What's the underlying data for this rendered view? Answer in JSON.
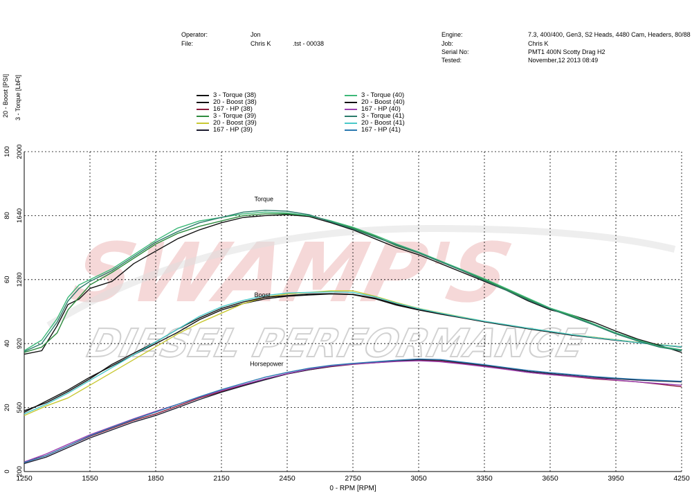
{
  "header": {
    "operator_label": "Operator:",
    "operator_value": "Jon",
    "file_label": "File:",
    "file_value": "Chris K",
    "file_extra": ".tst - 00038",
    "engine_label": "Engine:",
    "engine_value": "7.3, 400/400, Gen3, S2 Heads, 4480 Cam, Headers, 80/88",
    "job_label": "Job:",
    "job_value": "Chris K",
    "serial_label": "Serial No:",
    "serial_value": "PMT1 400N Scotty Drag H2",
    "tested_label": "Tested:",
    "tested_value": "November,12 2013 08:49"
  },
  "watermark": {
    "brand_top": "SWAMP'S",
    "brand_bottom": "DIESEL PERFORMANCE"
  },
  "colors": {
    "t38": "#111111",
    "b38": "#111111",
    "h38": "#8b1a3a",
    "t39": "#2e8b3e",
    "b39": "#c8c832",
    "h39": "#1a1a2e",
    "t40": "#3cb878",
    "b40": "#111111",
    "h40": "#9a3fb0",
    "t41": "#2a7a6a",
    "b41": "#48c8c8",
    "h41": "#2a78b0"
  },
  "chart_data": {
    "type": "line",
    "xlabel": "0 - RPM [RPM]",
    "ylabel_left": "20 - Boost [PSI]",
    "ylabel_right": "3 - Torque  [LbFt]",
    "xlim": [
      1250,
      4250
    ],
    "xticks": [
      1250,
      1550,
      1850,
      2150,
      2450,
      2750,
      3050,
      3350,
      3650,
      3950,
      4250
    ],
    "boost_ylim": [
      0,
      100
    ],
    "boost_ticks": [
      0,
      20,
      40,
      60,
      80,
      100
    ],
    "torque_ylim": [
      200,
      2000
    ],
    "torque_ticks": [
      200,
      560,
      920,
      1280,
      1640,
      2000
    ],
    "annotations": [
      {
        "text": "Torque",
        "x": 2300,
        "boost": 84.5
      },
      {
        "text": "Boost",
        "x": 2300,
        "boost": 54.5
      },
      {
        "text": "Horsepower",
        "x": 2280,
        "boost": 33.0
      }
    ],
    "legend": [
      {
        "label": "3 - Torque  (38)",
        "color": "#111111"
      },
      {
        "label": "20 - Boost (38)",
        "color": "#111111"
      },
      {
        "label": "167 - HP  (38)",
        "color": "#8b1a3a"
      },
      {
        "label": "3 - Torque  (39)",
        "color": "#2e8b3e"
      },
      {
        "label": "20 - Boost (39)",
        "color": "#c8c832"
      },
      {
        "label": "167 - HP  (39)",
        "color": "#1a1a2e"
      },
      {
        "label": "3 - Torque  (40)",
        "color": "#3cb878"
      },
      {
        "label": "20 - Boost (40)",
        "color": "#111111"
      },
      {
        "label": "167 - HP  (40)",
        "color": "#9a3fb0"
      },
      {
        "label": "3 - Torque  (41)",
        "color": "#2a7a6a"
      },
      {
        "label": "20 - Boost (41)",
        "color": "#48c8c8"
      },
      {
        "label": "167 - HP  (41)",
        "color": "#2a78b0"
      }
    ],
    "series": [
      {
        "key": "t38",
        "group": "torque",
        "x": [
          1250,
          1330,
          1400,
          1450,
          1500,
          1550,
          1650,
          1750,
          1850,
          1950,
          2050,
          2150,
          2250,
          2350,
          2450,
          2550,
          2650,
          2750,
          2850,
          2950,
          3050,
          3150,
          3250,
          3350,
          3450,
          3550,
          3650,
          3750,
          3850,
          3950,
          4050,
          4150,
          4250
        ],
        "torque": [
          860,
          880,
          1020,
          1140,
          1170,
          1230,
          1270,
          1370,
          1440,
          1510,
          1560,
          1600,
          1630,
          1640,
          1645,
          1635,
          1600,
          1560,
          1510,
          1460,
          1420,
          1370,
          1320,
          1270,
          1220,
          1160,
          1110,
          1080,
          1040,
          990,
          945,
          910,
          870
        ]
      },
      {
        "key": "t39",
        "group": "torque",
        "x": [
          1250,
          1330,
          1400,
          1450,
          1500,
          1550,
          1650,
          1750,
          1850,
          1950,
          2050,
          2150,
          2250,
          2350,
          2450,
          2550,
          2650,
          2750,
          2850,
          2950,
          3050,
          3150,
          3250,
          3350,
          3450,
          3550,
          3650,
          3750,
          3850,
          3950,
          4050,
          4150,
          4250
        ],
        "torque": [
          870,
          900,
          980,
          1110,
          1180,
          1250,
          1320,
          1400,
          1480,
          1540,
          1580,
          1610,
          1640,
          1650,
          1650,
          1640,
          1610,
          1570,
          1525,
          1470,
          1430,
          1380,
          1330,
          1280,
          1225,
          1170,
          1115,
          1075,
          1025,
          975,
          935,
          900,
          880
        ]
      },
      {
        "key": "t40",
        "group": "torque",
        "x": [
          1250,
          1330,
          1400,
          1450,
          1500,
          1550,
          1650,
          1750,
          1850,
          1950,
          2050,
          2150,
          2250,
          2350,
          2450,
          2550,
          2650,
          2750,
          2850,
          2950,
          3050,
          3150,
          3250,
          3350,
          3450,
          3550,
          3650,
          3750,
          3850,
          3950,
          4050,
          4150,
          4250
        ],
        "torque": [
          880,
          940,
          1060,
          1180,
          1250,
          1280,
          1340,
          1420,
          1500,
          1570,
          1610,
          1630,
          1650,
          1660,
          1655,
          1640,
          1610,
          1575,
          1530,
          1480,
          1435,
          1385,
          1335,
          1285,
          1230,
          1175,
          1120,
          1080,
          1030,
          980,
          940,
          905,
          885
        ]
      },
      {
        "key": "t41",
        "group": "torque",
        "x": [
          1250,
          1330,
          1400,
          1450,
          1500,
          1550,
          1650,
          1750,
          1850,
          1950,
          2050,
          2150,
          2250,
          2350,
          2450,
          2550,
          2650,
          2750,
          2850,
          2950,
          3050,
          3150,
          3250,
          3350,
          3450,
          3550,
          3650,
          3750,
          3850,
          3950,
          4050,
          4150,
          4250
        ],
        "torque": [
          875,
          920,
          1040,
          1160,
          1230,
          1270,
          1330,
          1410,
          1490,
          1550,
          1600,
          1630,
          1660,
          1670,
          1665,
          1645,
          1605,
          1565,
          1520,
          1475,
          1430,
          1380,
          1330,
          1275,
          1220,
          1165,
          1115,
          1070,
          1025,
          975,
          935,
          900,
          880
        ]
      },
      {
        "key": "b38",
        "group": "boost",
        "x": [
          1250,
          1350,
          1450,
          1550,
          1650,
          1750,
          1850,
          1950,
          2050,
          2150,
          2250,
          2350,
          2450,
          2550,
          2650,
          2750,
          2850,
          2950,
          3050,
          3150,
          3250,
          3350,
          3450,
          3550,
          3650,
          3750,
          3850,
          3950,
          4050,
          4150,
          4250
        ],
        "boost": [
          18.5,
          22.0,
          25.5,
          29.5,
          33.0,
          36.5,
          40.0,
          43.5,
          47.5,
          50.5,
          52.5,
          54.0,
          54.8,
          55.2,
          55.5,
          55.3,
          54.0,
          52.0,
          50.5,
          49.2,
          48.0,
          46.8,
          45.7,
          44.6,
          43.6,
          42.6,
          41.8,
          41.0,
          40.3,
          39.6,
          39.0
        ]
      },
      {
        "key": "b39",
        "group": "boost",
        "x": [
          1250,
          1350,
          1450,
          1550,
          1650,
          1750,
          1850,
          1950,
          2050,
          2150,
          2250,
          2350,
          2450,
          2550,
          2650,
          2750,
          2850,
          2950,
          3050,
          3150,
          3250,
          3350,
          3450,
          3550,
          3650,
          3750,
          3850,
          3950,
          4050,
          4150,
          4250
        ],
        "boost": [
          17.5,
          20.5,
          23.0,
          27.0,
          31.0,
          35.0,
          39.0,
          43.0,
          46.5,
          49.5,
          52.5,
          54.5,
          55.5,
          56.0,
          56.5,
          56.5,
          54.8,
          52.8,
          51.0,
          49.6,
          48.3,
          47.0,
          45.9,
          44.8,
          43.8,
          42.8,
          42.0,
          41.2,
          40.4,
          39.7,
          39.0
        ]
      },
      {
        "key": "b40",
        "group": "boost",
        "x": [
          1250,
          1350,
          1450,
          1550,
          1650,
          1750,
          1850,
          1950,
          2050,
          2150,
          2250,
          2350,
          2450,
          2550,
          2650,
          2750,
          2850,
          2950,
          3050,
          3150,
          3250,
          3350,
          3450,
          3550,
          3650,
          3750,
          3850,
          3950,
          4050,
          4150,
          4250
        ],
        "boost": [
          19.0,
          21.5,
          25.0,
          29.0,
          33.5,
          37.0,
          40.5,
          44.5,
          48.0,
          51.0,
          53.0,
          54.5,
          55.0,
          55.5,
          55.6,
          55.4,
          54.2,
          52.3,
          50.6,
          49.3,
          48.1,
          46.9,
          45.8,
          44.7,
          43.7,
          42.7,
          41.9,
          41.1,
          40.3,
          39.6,
          38.9
        ]
      },
      {
        "key": "b41",
        "group": "boost",
        "x": [
          1250,
          1350,
          1450,
          1550,
          1650,
          1750,
          1850,
          1950,
          2050,
          2150,
          2250,
          2350,
          2450,
          2550,
          2650,
          2750,
          2850,
          2950,
          3050,
          3150,
          3250,
          3350,
          3450,
          3550,
          3650,
          3750,
          3850,
          3950,
          4050,
          4150,
          4250
        ],
        "boost": [
          18.0,
          21.0,
          24.5,
          28.5,
          32.5,
          36.5,
          40.5,
          44.5,
          48.5,
          51.5,
          53.5,
          55.0,
          55.8,
          56.0,
          56.2,
          56.0,
          54.6,
          52.6,
          50.9,
          49.5,
          48.2,
          47.0,
          45.9,
          44.8,
          43.8,
          42.8,
          41.9,
          41.1,
          40.3,
          39.6,
          39.0
        ]
      },
      {
        "key": "h38",
        "group": "hp",
        "x": [
          1250,
          1350,
          1450,
          1550,
          1650,
          1750,
          1850,
          1950,
          2050,
          2150,
          2250,
          2350,
          2450,
          2550,
          2650,
          2750,
          2850,
          2950,
          3050,
          3150,
          3250,
          3350,
          3450,
          3550,
          3650,
          3750,
          3850,
          3950,
          4050,
          4150,
          4250
        ],
        "boost": [
          3.0,
          5.0,
          8.0,
          11.0,
          13.5,
          16.0,
          18.0,
          20.5,
          23.0,
          25.0,
          27.0,
          28.8,
          30.5,
          31.8,
          32.8,
          33.5,
          34.0,
          34.5,
          34.8,
          34.5,
          33.8,
          33.0,
          32.0,
          31.0,
          30.3,
          29.7,
          29.0,
          28.5,
          28.0,
          27.3,
          26.5
        ]
      },
      {
        "key": "h39",
        "group": "hp",
        "x": [
          1250,
          1350,
          1450,
          1550,
          1650,
          1750,
          1850,
          1950,
          2050,
          2150,
          2250,
          2350,
          2450,
          2550,
          2650,
          2750,
          2850,
          2950,
          3050,
          3150,
          3250,
          3350,
          3450,
          3550,
          3650,
          3750,
          3850,
          3950,
          4050,
          4150,
          4250
        ],
        "boost": [
          2.5,
          4.5,
          7.5,
          10.5,
          13.0,
          15.5,
          17.5,
          20.0,
          22.5,
          24.8,
          26.8,
          28.7,
          30.5,
          31.8,
          32.9,
          33.6,
          34.1,
          34.6,
          35.0,
          34.8,
          34.0,
          33.2,
          32.3,
          31.3,
          30.6,
          30.0,
          29.4,
          29.0,
          28.6,
          28.3,
          28.0
        ]
      },
      {
        "key": "h40",
        "group": "hp",
        "x": [
          1250,
          1350,
          1450,
          1550,
          1650,
          1750,
          1850,
          1950,
          2050,
          2150,
          2250,
          2350,
          2450,
          2550,
          2650,
          2750,
          2850,
          2950,
          3050,
          3150,
          3250,
          3350,
          3450,
          3550,
          3650,
          3750,
          3850,
          3950,
          4050,
          4150,
          4250
        ],
        "boost": [
          3.0,
          5.5,
          8.5,
          11.5,
          14.0,
          16.5,
          18.8,
          21.0,
          23.3,
          25.3,
          27.2,
          29.0,
          30.6,
          32.0,
          33.0,
          33.6,
          34.0,
          34.4,
          34.6,
          34.3,
          33.6,
          32.8,
          31.9,
          31.0,
          30.3,
          29.8,
          29.2,
          28.6,
          28.0,
          27.5,
          27.0
        ]
      },
      {
        "key": "h41",
        "group": "hp",
        "x": [
          1250,
          1350,
          1450,
          1550,
          1650,
          1750,
          1850,
          1950,
          2050,
          2150,
          2250,
          2350,
          2450,
          2550,
          2650,
          2750,
          2850,
          2950,
          3050,
          3150,
          3250,
          3350,
          3450,
          3550,
          3650,
          3750,
          3850,
          3950,
          4050,
          4150,
          4250
        ],
        "boost": [
          2.8,
          5.0,
          8.0,
          11.2,
          13.8,
          16.3,
          18.6,
          21.0,
          23.4,
          25.6,
          27.6,
          29.5,
          31.0,
          32.3,
          33.2,
          33.8,
          34.3,
          34.8,
          35.2,
          35.0,
          34.2,
          33.4,
          32.5,
          31.6,
          30.9,
          30.3,
          29.7,
          29.2,
          28.8,
          28.5,
          28.2
        ]
      }
    ]
  }
}
